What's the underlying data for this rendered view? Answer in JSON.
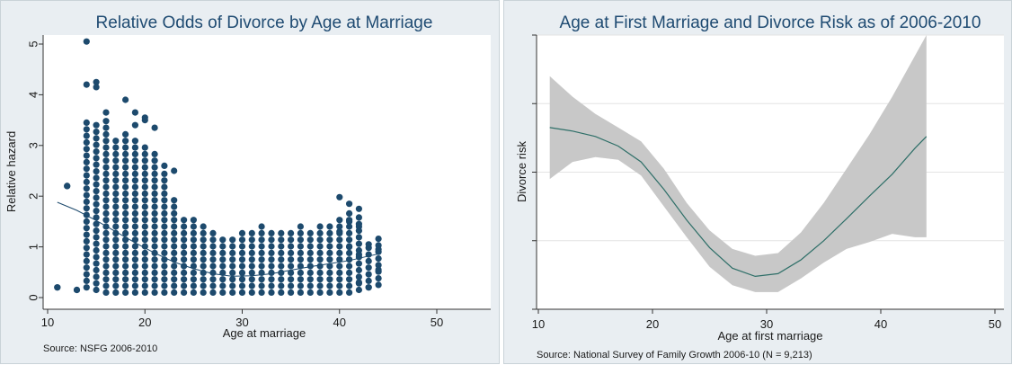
{
  "chart_data": [
    {
      "type": "scatter",
      "title": "Relative Odds of Divorce by Age at Marriage",
      "xlabel": "Age at marriage",
      "ylabel": "Relative hazard",
      "xlim": [
        10,
        50
      ],
      "ylim": [
        0,
        5
      ],
      "xticks": [
        "10",
        "20",
        "30",
        "40",
        "50"
      ],
      "yticks": [
        "0",
        "1",
        "2",
        "3",
        "4",
        "5"
      ],
      "source": "Source: NSFG 2006-2010",
      "grid": false,
      "colors": {
        "marker": "#1d4a6d",
        "fit_line": "#1d4a6d",
        "background": "#e9eef2"
      },
      "series": [
        {
          "kind": "points",
          "ranges": [
            {
              "x": 11,
              "ymin": 0.2,
              "ymax": 0.2
            },
            {
              "x": 12,
              "ymin": 2.2,
              "ymax": 2.2
            },
            {
              "x": 13,
              "ymin": 0.15,
              "ymax": 0.15
            },
            {
              "x": 14,
              "ymin": 0.2,
              "ymax": 3.5
            },
            {
              "x": 15,
              "ymin": 0.15,
              "ymax": 3.4
            },
            {
              "x": 16,
              "ymin": 0.1,
              "ymax": 3.6
            },
            {
              "x": 17,
              "ymin": 0.1,
              "ymax": 3.2
            },
            {
              "x": 18,
              "ymin": 0.1,
              "ymax": 3.3
            },
            {
              "x": 19,
              "ymin": 0.1,
              "ymax": 3.1
            },
            {
              "x": 20,
              "ymin": 0.1,
              "ymax": 3.0
            },
            {
              "x": 21,
              "ymin": 0.1,
              "ymax": 2.9
            },
            {
              "x": 22,
              "ymin": 0.1,
              "ymax": 2.5
            },
            {
              "x": 23,
              "ymin": 0.1,
              "ymax": 2.0
            },
            {
              "x": 24,
              "ymin": 0.1,
              "ymax": 1.6
            },
            {
              "x": 25,
              "ymin": 0.1,
              "ymax": 1.6
            },
            {
              "x": 26,
              "ymin": 0.1,
              "ymax": 1.4
            },
            {
              "x": 27,
              "ymin": 0.1,
              "ymax": 1.3
            },
            {
              "x": 28,
              "ymin": 0.1,
              "ymax": 1.2
            },
            {
              "x": 29,
              "ymin": 0.1,
              "ymax": 1.2
            },
            {
              "x": 30,
              "ymin": 0.1,
              "ymax": 1.3
            },
            {
              "x": 31,
              "ymin": 0.1,
              "ymax": 1.3
            },
            {
              "x": 32,
              "ymin": 0.1,
              "ymax": 1.4
            },
            {
              "x": 33,
              "ymin": 0.1,
              "ymax": 1.3
            },
            {
              "x": 34,
              "ymin": 0.1,
              "ymax": 1.3
            },
            {
              "x": 35,
              "ymin": 0.1,
              "ymax": 1.3
            },
            {
              "x": 36,
              "ymin": 0.1,
              "ymax": 1.4
            },
            {
              "x": 37,
              "ymin": 0.1,
              "ymax": 1.3
            },
            {
              "x": 38,
              "ymin": 0.1,
              "ymax": 1.4
            },
            {
              "x": 39,
              "ymin": 0.1,
              "ymax": 1.5
            },
            {
              "x": 40,
              "ymin": 0.1,
              "ymax": 1.6
            },
            {
              "x": 41,
              "ymin": 0.1,
              "ymax": 1.7
            },
            {
              "x": 42,
              "ymin": 0.15,
              "ymax": 1.6
            },
            {
              "x": 43,
              "ymin": 0.2,
              "ymax": 1.1
            },
            {
              "x": 44,
              "ymin": 0.25,
              "ymax": 1.2
            }
          ],
          "points": [
            {
              "x": 14,
              "y": 5.05
            },
            {
              "x": 14,
              "y": 4.2
            },
            {
              "x": 15,
              "y": 4.25
            },
            {
              "x": 15,
              "y": 4.15
            },
            {
              "x": 16,
              "y": 3.65
            },
            {
              "x": 18,
              "y": 3.9
            },
            {
              "x": 19,
              "y": 3.65
            },
            {
              "x": 20,
              "y": 3.55
            },
            {
              "x": 21,
              "y": 3.35
            },
            {
              "x": 20,
              "y": 3.5
            },
            {
              "x": 22,
              "y": 2.6
            },
            {
              "x": 23,
              "y": 2.5
            },
            {
              "x": 19,
              "y": 3.4
            },
            {
              "x": 40,
              "y": 1.98
            },
            {
              "x": 41,
              "y": 1.85
            },
            {
              "x": 42,
              "y": 1.75
            },
            {
              "x": 41,
              "y": 1.5
            },
            {
              "x": 40,
              "y": 1.3
            },
            {
              "x": 42,
              "y": 1.4
            },
            {
              "x": 43,
              "y": 1.05
            },
            {
              "x": 44,
              "y": 0.95
            },
            {
              "x": 43,
              "y": 0.2
            },
            {
              "x": 42,
              "y": 0.85
            },
            {
              "x": 41,
              "y": 1.0
            },
            {
              "x": 44,
              "y": 0.55
            },
            {
              "x": 42,
              "y": 0.3
            }
          ]
        },
        {
          "kind": "fitted_line",
          "x": [
            11,
            13,
            15,
            17,
            19,
            21,
            23,
            25,
            27,
            29,
            31,
            33,
            35,
            37,
            39,
            41,
            43,
            44
          ],
          "y": [
            1.88,
            1.72,
            1.52,
            1.3,
            1.08,
            0.88,
            0.7,
            0.57,
            0.47,
            0.42,
            0.43,
            0.47,
            0.54,
            0.61,
            0.67,
            0.73,
            0.82,
            0.86
          ]
        }
      ]
    },
    {
      "type": "line",
      "title": "Age at First Marriage and Divorce Risk as of 2006-2010",
      "xlabel": "Age at first marriage",
      "ylabel": "Divorce risk",
      "xlim": [
        10,
        50
      ],
      "xticks": [
        "10",
        "20",
        "30",
        "40",
        "50"
      ],
      "ylim": [
        0,
        4
      ],
      "y_ticks_labeled": false,
      "source": "Source: National Survey of Family Growth 2006-10 (N = 9,213)",
      "grid": true,
      "colors": {
        "line": "#2e6f68",
        "band": "#c8c8c8",
        "background": "#e9eef2",
        "grid": "#e3e3e3"
      },
      "series": [
        {
          "kind": "estimate",
          "x": [
            11,
            13,
            15,
            17,
            19,
            21,
            23,
            25,
            27,
            29,
            31,
            33,
            35,
            37,
            39,
            41,
            43,
            44
          ],
          "y": [
            2.65,
            2.6,
            2.52,
            2.38,
            2.15,
            1.75,
            1.3,
            0.9,
            0.6,
            0.48,
            0.52,
            0.72,
            1.0,
            1.32,
            1.65,
            1.97,
            2.35,
            2.52
          ],
          "ci_upper": [
            3.4,
            3.1,
            2.85,
            2.65,
            2.45,
            2.05,
            1.55,
            1.15,
            0.88,
            0.78,
            0.82,
            1.12,
            1.55,
            2.05,
            2.55,
            3.1,
            3.7,
            4.0
          ],
          "ci_lower": [
            1.9,
            2.15,
            2.22,
            2.18,
            1.95,
            1.5,
            1.05,
            0.62,
            0.35,
            0.25,
            0.25,
            0.45,
            0.68,
            0.88,
            0.98,
            1.1,
            1.05,
            1.05
          ]
        }
      ]
    }
  ]
}
